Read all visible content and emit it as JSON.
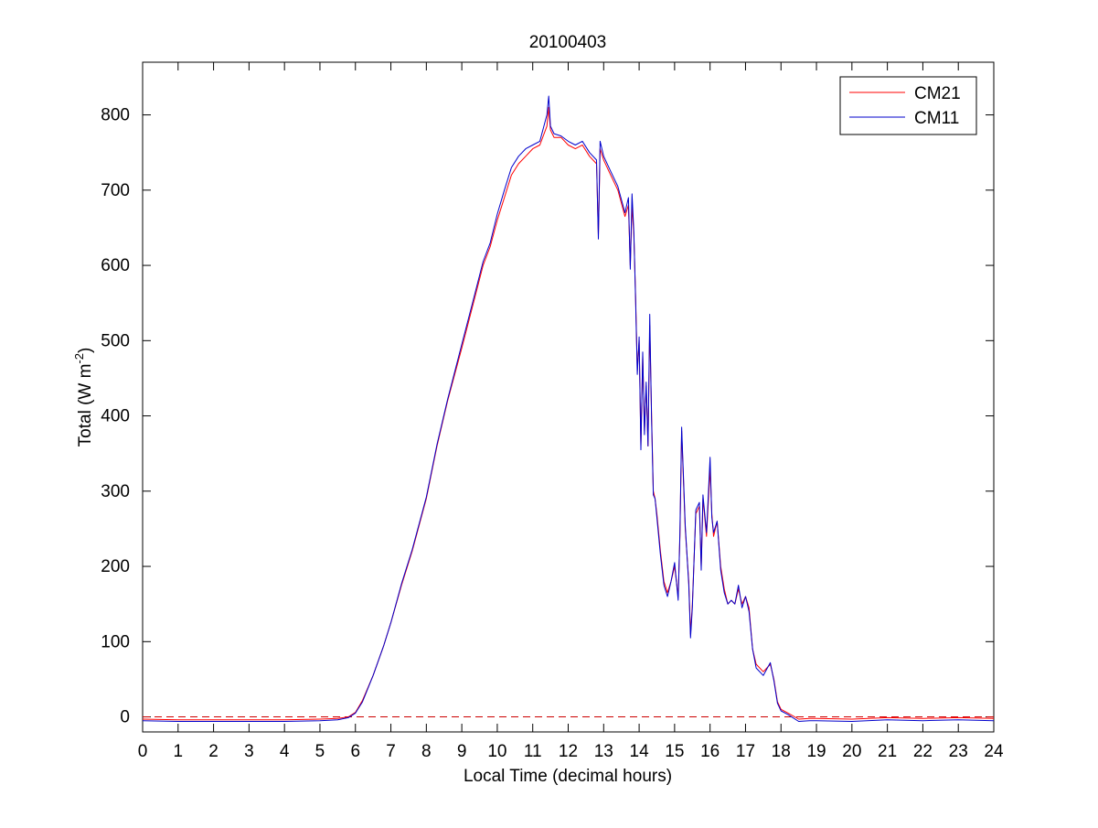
{
  "chart_data": {
    "type": "line",
    "title": "20100403",
    "xlabel": "Local Time (decimal hours)",
    "ylabel_main": "Total (W m",
    "ylabel_sup": "-2",
    "ylabel_close": ")",
    "xlim": [
      0,
      24
    ],
    "ylim": [
      -20,
      870
    ],
    "xticks": [
      0,
      1,
      2,
      3,
      4,
      5,
      6,
      7,
      8,
      9,
      10,
      11,
      12,
      13,
      14,
      15,
      16,
      17,
      18,
      19,
      20,
      21,
      22,
      23,
      24
    ],
    "yticks": [
      0,
      100,
      200,
      300,
      400,
      500,
      600,
      700,
      800
    ],
    "grid": false,
    "legend_position": "top-right",
    "reference_line": {
      "y": 0,
      "style": "dashed",
      "color": "#cc0000"
    },
    "series": [
      {
        "name": "CM21",
        "color": "#ff0000",
        "x": [
          0,
          1,
          2,
          3,
          4,
          5,
          5.5,
          5.8,
          6,
          6.2,
          6.5,
          6.8,
          7,
          7.3,
          7.6,
          8,
          8.3,
          8.6,
          9,
          9.3,
          9.6,
          9.8,
          10,
          10.2,
          10.4,
          10.6,
          10.8,
          11,
          11.2,
          11.4,
          11.45,
          11.5,
          11.6,
          11.8,
          12,
          12.2,
          12.4,
          12.6,
          12.8,
          12.85,
          12.9,
          13,
          13.2,
          13.4,
          13.6,
          13.7,
          13.75,
          13.8,
          13.85,
          13.9,
          13.95,
          14,
          14.05,
          14.1,
          14.15,
          14.2,
          14.25,
          14.3,
          14.35,
          14.4,
          14.45,
          14.5,
          14.6,
          14.7,
          14.8,
          14.9,
          15,
          15.1,
          15.15,
          15.2,
          15.3,
          15.4,
          15.45,
          15.5,
          15.6,
          15.7,
          15.75,
          15.8,
          15.9,
          16,
          16.05,
          16.1,
          16.2,
          16.3,
          16.4,
          16.5,
          16.6,
          16.7,
          16.8,
          16.9,
          17,
          17.1,
          17.2,
          17.3,
          17.5,
          17.7,
          17.8,
          17.9,
          18,
          18.2,
          18.5,
          18.8,
          19,
          20,
          21,
          22,
          23,
          24
        ],
        "y": [
          -3,
          -4,
          -4,
          -4,
          -4,
          -3,
          -2,
          0,
          6,
          22,
          55,
          95,
          125,
          175,
          220,
          290,
          360,
          420,
          490,
          545,
          600,
          625,
          660,
          690,
          720,
          735,
          745,
          755,
          760,
          785,
          810,
          780,
          770,
          770,
          760,
          755,
          760,
          745,
          735,
          640,
          755,
          740,
          720,
          700,
          665,
          680,
          600,
          680,
          640,
          560,
          460,
          500,
          360,
          480,
          380,
          440,
          360,
          520,
          400,
          300,
          290,
          270,
          220,
          180,
          165,
          180,
          200,
          160,
          240,
          380,
          250,
          180,
          110,
          150,
          270,
          280,
          200,
          290,
          240,
          330,
          270,
          240,
          260,
          200,
          170,
          150,
          155,
          150,
          170,
          150,
          160,
          145,
          90,
          70,
          60,
          70,
          50,
          20,
          10,
          5,
          -3,
          -2,
          -2,
          -3,
          -1,
          -2,
          -1,
          -2
        ],
        "labels_note": ""
      },
      {
        "name": "CM11",
        "color": "#0000cc",
        "x": [
          0,
          1,
          2,
          3,
          4,
          5,
          5.5,
          5.8,
          6,
          6.2,
          6.5,
          6.8,
          7,
          7.3,
          7.6,
          8,
          8.3,
          8.6,
          9,
          9.3,
          9.6,
          9.8,
          10,
          10.2,
          10.4,
          10.6,
          10.8,
          11,
          11.2,
          11.4,
          11.45,
          11.5,
          11.6,
          11.8,
          12,
          12.2,
          12.4,
          12.6,
          12.8,
          12.85,
          12.9,
          13,
          13.2,
          13.4,
          13.6,
          13.7,
          13.75,
          13.8,
          13.85,
          13.9,
          13.95,
          14,
          14.05,
          14.1,
          14.15,
          14.2,
          14.25,
          14.3,
          14.35,
          14.4,
          14.45,
          14.5,
          14.6,
          14.7,
          14.8,
          14.9,
          15,
          15.1,
          15.15,
          15.2,
          15.3,
          15.4,
          15.45,
          15.5,
          15.6,
          15.7,
          15.75,
          15.8,
          15.9,
          16,
          16.05,
          16.1,
          16.2,
          16.3,
          16.4,
          16.5,
          16.6,
          16.7,
          16.8,
          16.9,
          17,
          17.1,
          17.2,
          17.3,
          17.5,
          17.7,
          17.8,
          17.9,
          18,
          18.2,
          18.5,
          18.8,
          19,
          20,
          21,
          22,
          23,
          24
        ],
        "y": [
          -5,
          -6,
          -6,
          -6,
          -6,
          -5,
          -4,
          -1,
          5,
          20,
          55,
          95,
          125,
          177,
          222,
          292,
          362,
          422,
          495,
          550,
          605,
          630,
          668,
          700,
          730,
          745,
          755,
          760,
          765,
          800,
          825,
          785,
          775,
          772,
          765,
          760,
          765,
          750,
          740,
          635,
          765,
          745,
          725,
          705,
          670,
          690,
          595,
          695,
          645,
          555,
          455,
          505,
          355,
          485,
          375,
          445,
          360,
          535,
          395,
          295,
          290,
          265,
          215,
          175,
          160,
          180,
          205,
          155,
          245,
          385,
          255,
          175,
          105,
          145,
          275,
          285,
          195,
          295,
          245,
          345,
          265,
          245,
          260,
          195,
          165,
          150,
          155,
          150,
          175,
          145,
          160,
          140,
          90,
          65,
          55,
          72,
          48,
          18,
          8,
          3,
          -6,
          -5,
          -5,
          -6,
          -4,
          -5,
          -4,
          -5
        ]
      }
    ]
  }
}
